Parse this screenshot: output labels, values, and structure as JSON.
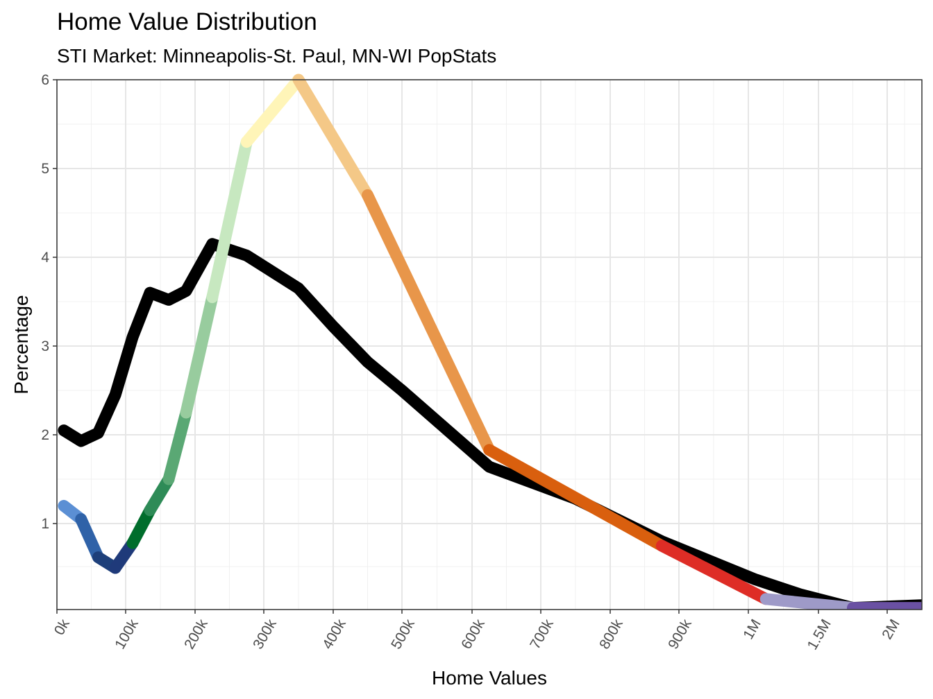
{
  "chart_data": {
    "type": "line",
    "title": "Home Value Distribution",
    "subtitle": "STI Market: Minneapolis-St. Paul, MN-WI PopStats",
    "xlabel": "Home Values",
    "ylabel": "Percentage",
    "ylim": [
      0,
      6
    ],
    "grid": true,
    "x_tick_labels": [
      "0k",
      "100k",
      "200k",
      "300k",
      "400k",
      "500k",
      "600k",
      "700k",
      "800k",
      "900k",
      "1M",
      "1.5M",
      "2M"
    ],
    "y_ticks": [
      1,
      2,
      3,
      4,
      5,
      6
    ],
    "series": [
      {
        "color": "#000000",
        "points": [
          [
            10,
            2.05
          ],
          [
            35,
            1.93
          ],
          [
            60,
            2.02
          ],
          [
            85,
            2.45
          ],
          [
            110,
            3.1
          ],
          [
            135,
            3.6
          ],
          [
            162,
            3.52
          ],
          [
            187,
            3.62
          ],
          [
            225,
            4.15
          ],
          [
            275,
            4.02
          ],
          [
            350,
            3.65
          ],
          [
            400,
            3.22
          ],
          [
            450,
            2.82
          ],
          [
            500,
            2.5
          ],
          [
            625,
            1.64
          ],
          [
            750,
            1.28
          ],
          [
            875,
            0.8
          ],
          [
            1050,
            0.37
          ],
          [
            1375,
            0.2
          ],
          [
            1750,
            0.05
          ],
          [
            2250,
            0.08
          ]
        ]
      },
      {
        "segments": [
          {
            "color": "#5b8fd4",
            "points": [
              [
                10,
                1.2
              ],
              [
                35,
                1.05
              ]
            ]
          },
          {
            "color": "#2f62a8",
            "points": [
              [
                35,
                1.05
              ],
              [
                60,
                0.62
              ]
            ]
          },
          {
            "color": "#1d3f7a",
            "points": [
              [
                60,
                0.62
              ],
              [
                85,
                0.5
              ]
            ]
          },
          {
            "color": "#1f3a7a",
            "points": [
              [
                85,
                0.5
              ],
              [
                110,
                0.78
              ]
            ]
          },
          {
            "color": "#006d2c",
            "points": [
              [
                110,
                0.78
              ],
              [
                135,
                1.15
              ]
            ]
          },
          {
            "color": "#2e8b57",
            "points": [
              [
                135,
                1.15
              ],
              [
                162,
                1.5
              ]
            ]
          },
          {
            "color": "#5aa874",
            "points": [
              [
                162,
                1.5
              ],
              [
                187,
                2.25
              ]
            ]
          },
          {
            "color": "#98cc9e",
            "points": [
              [
                187,
                2.25
              ],
              [
                225,
                3.55
              ]
            ]
          },
          {
            "color": "#c7e8c0",
            "points": [
              [
                225,
                3.55
              ],
              [
                275,
                5.3
              ]
            ]
          },
          {
            "color": "#fff5b8",
            "points": [
              [
                275,
                5.3
              ],
              [
                350,
                6.0
              ]
            ]
          },
          {
            "color": "#f4c887",
            "points": [
              [
                350,
                6.0
              ],
              [
                450,
                4.7
              ]
            ]
          },
          {
            "color": "#e8964a",
            "points": [
              [
                450,
                4.7
              ],
              [
                625,
                1.83
              ]
            ]
          },
          {
            "color": "#d95f0e",
            "points": [
              [
                625,
                1.83
              ],
              [
                875,
                0.75
              ]
            ]
          },
          {
            "color": "#de2d26",
            "points": [
              [
                875,
                0.75
              ],
              [
                1125,
                0.15
              ]
            ]
          },
          {
            "color": "#9e9ac8",
            "points": [
              [
                1125,
                0.15
              ],
              [
                1750,
                0.05
              ]
            ]
          },
          {
            "color": "#6a51a3",
            "points": [
              [
                1750,
                0.05
              ],
              [
                2250,
                0.05
              ]
            ]
          }
        ]
      }
    ]
  }
}
